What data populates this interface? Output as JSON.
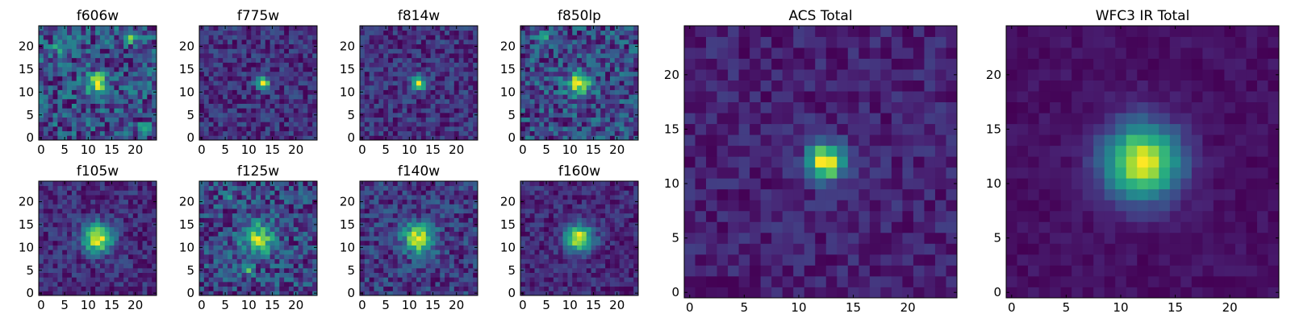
{
  "figure": {
    "description_type": "heatmap grid",
    "colormap": [
      "#440154",
      "#482475",
      "#414487",
      "#355f8d",
      "#2a788e",
      "#21918c",
      "#22a884",
      "#44bf70",
      "#7ad151",
      "#bddf26",
      "#fde725"
    ]
  },
  "chart_data": [
    {
      "type": "heatmap",
      "title": "f606w",
      "nx": 25,
      "ny": 25,
      "xlim": [
        0,
        24
      ],
      "ylim": [
        0,
        24
      ],
      "xticks": [
        0,
        5,
        10,
        15,
        20
      ],
      "yticks": [
        0,
        5,
        10,
        15,
        20
      ],
      "peak": [
        12,
        12
      ],
      "sigma": 1.6,
      "background": 0.38,
      "amplitude": 0.55,
      "noise": 0.42,
      "seed": 11,
      "hotspots": [
        [
          19,
          22,
          0.6
        ],
        [
          22,
          2,
          0.45
        ],
        [
          4,
          20,
          0.35
        ]
      ]
    },
    {
      "type": "heatmap",
      "title": "f775w",
      "nx": 25,
      "ny": 25,
      "xlim": [
        0,
        24
      ],
      "ylim": [
        0,
        24
      ],
      "xticks": [
        0,
        5,
        10,
        15,
        20
      ],
      "yticks": [
        0,
        5,
        10,
        15,
        20
      ],
      "peak": [
        13,
        12
      ],
      "sigma": 1.0,
      "background": 0.22,
      "amplitude": 0.8,
      "noise": 0.3,
      "seed": 23,
      "hotspots": []
    },
    {
      "type": "heatmap",
      "title": "f814w",
      "nx": 25,
      "ny": 25,
      "xlim": [
        0,
        24
      ],
      "ylim": [
        0,
        24
      ],
      "xticks": [
        0,
        5,
        10,
        15,
        20
      ],
      "yticks": [
        0,
        5,
        10,
        15,
        20
      ],
      "peak": [
        12,
        12
      ],
      "sigma": 1.1,
      "background": 0.2,
      "amplitude": 0.75,
      "noise": 0.3,
      "seed": 37,
      "hotspots": []
    },
    {
      "type": "heatmap",
      "title": "f850lp",
      "nx": 25,
      "ny": 25,
      "xlim": [
        0,
        24
      ],
      "ylim": [
        0,
        24
      ],
      "xticks": [
        0,
        5,
        10,
        15,
        20
      ],
      "yticks": [
        0,
        5,
        10,
        15,
        20
      ],
      "peak": [
        12,
        12
      ],
      "sigma": 1.8,
      "background": 0.3,
      "amplitude": 0.6,
      "noise": 0.4,
      "seed": 41,
      "hotspots": [
        [
          4,
          22,
          0.4
        ]
      ]
    },
    {
      "type": "heatmap",
      "title": "f105w",
      "nx": 25,
      "ny": 25,
      "xlim": [
        0,
        24
      ],
      "ylim": [
        0,
        24
      ],
      "xticks": [
        0,
        5,
        10,
        15,
        20
      ],
      "yticks": [
        0,
        5,
        10,
        15,
        20
      ],
      "peak": [
        12,
        12
      ],
      "sigma": 2.2,
      "background": 0.3,
      "amplitude": 0.7,
      "noise": 0.22,
      "seed": 53,
      "hotspots": []
    },
    {
      "type": "heatmap",
      "title": "f125w",
      "nx": 25,
      "ny": 25,
      "xlim": [
        0,
        24
      ],
      "ylim": [
        0,
        24
      ],
      "xticks": [
        0,
        5,
        10,
        15,
        20
      ],
      "yticks": [
        0,
        5,
        10,
        15,
        20
      ],
      "peak": [
        12,
        12
      ],
      "sigma": 2.4,
      "background": 0.32,
      "amplitude": 0.45,
      "noise": 0.32,
      "seed": 67,
      "hotspots": [
        [
          10,
          5,
          0.35
        ],
        [
          6,
          21,
          0.3
        ]
      ]
    },
    {
      "type": "heatmap",
      "title": "f140w",
      "nx": 25,
      "ny": 25,
      "xlim": [
        0,
        24
      ],
      "ylim": [
        0,
        24
      ],
      "xticks": [
        0,
        5,
        10,
        15,
        20
      ],
      "yticks": [
        0,
        5,
        10,
        15,
        20
      ],
      "peak": [
        12,
        12
      ],
      "sigma": 2.3,
      "background": 0.3,
      "amplitude": 0.62,
      "noise": 0.28,
      "seed": 71,
      "hotspots": []
    },
    {
      "type": "heatmap",
      "title": "f160w",
      "nx": 25,
      "ny": 25,
      "xlim": [
        0,
        24
      ],
      "ylim": [
        0,
        24
      ],
      "xticks": [
        0,
        5,
        10,
        15,
        20
      ],
      "yticks": [
        0,
        5,
        10,
        15,
        20
      ],
      "peak": [
        12,
        12
      ],
      "sigma": 2.0,
      "background": 0.2,
      "amplitude": 0.75,
      "noise": 0.2,
      "seed": 83,
      "hotspots": []
    },
    {
      "type": "heatmap",
      "title": "ACS Total",
      "nx": 25,
      "ny": 25,
      "xlim": [
        0,
        24
      ],
      "ylim": [
        0,
        24
      ],
      "xticks": [
        0,
        5,
        10,
        15,
        20
      ],
      "yticks": [
        0,
        5,
        10,
        15,
        20
      ],
      "peak": [
        12.5,
        12
      ],
      "sigma": 1.2,
      "background": 0.22,
      "amplitude": 0.78,
      "noise": 0.16,
      "seed": 97,
      "hotspots": []
    },
    {
      "type": "heatmap",
      "title": "WFC3 IR Total",
      "nx": 25,
      "ny": 25,
      "xlim": [
        0,
        24
      ],
      "ylim": [
        0,
        24
      ],
      "xticks": [
        0,
        5,
        10,
        15,
        20
      ],
      "yticks": [
        0,
        5,
        10,
        15,
        20
      ],
      "peak": [
        12,
        12
      ],
      "sigma": 2.4,
      "background": 0.12,
      "amplitude": 0.88,
      "noise": 0.08,
      "seed": 101,
      "hotspots": []
    }
  ]
}
